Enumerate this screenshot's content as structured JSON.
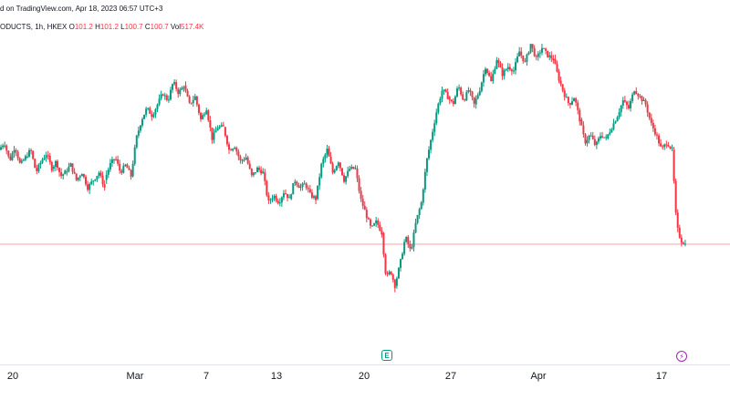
{
  "header": {
    "caption": "d on TradingView.com, Apr 18, 2023 06:57 UTC+3",
    "symbol": "ODUCTS, 1h, HKEX",
    "open_label": "O",
    "open": "101.2",
    "high_label": "H",
    "high": "101.2",
    "low_label": "L",
    "low": "100.7",
    "close_label": "C",
    "close": "100.7",
    "volume_label": "Vol",
    "volume": "517.4K"
  },
  "markers": {
    "earnings": "E",
    "dividend": "⚡"
  },
  "colors": {
    "up": "#089981",
    "down": "#f23645",
    "price_line": "#f7a3a9",
    "text": "#131722"
  },
  "chart_data": {
    "type": "candlestick",
    "interval": "1h",
    "x_tick_labels": [
      "20",
      "Mar",
      "7",
      "13",
      "20",
      "27",
      "Apr",
      "17"
    ],
    "ylim": [
      98.0,
      106.2
    ],
    "last_price": 100.7,
    "segments": [
      {
        "days": 2,
        "points": [
          103.2,
          103.4,
          102.9,
          103.3,
          102.8,
          103.0
        ]
      },
      {
        "days": 2,
        "points": [
          103.0,
          103.2,
          102.6,
          102.9,
          103.1,
          102.7
        ]
      },
      {
        "days": 1,
        "points": [
          102.7,
          102.9,
          102.5,
          102.6
        ]
      },
      {
        "days": 3,
        "points": [
          102.6,
          102.8,
          102.4,
          102.6,
          102.2,
          102.4,
          102.6,
          102.2
        ]
      },
      {
        "days": 2,
        "points": [
          102.4,
          102.8,
          103.0,
          102.6,
          102.8,
          102.5
        ]
      },
      {
        "days": 2,
        "points": [
          102.5,
          103.5,
          104.0,
          104.3,
          104.1,
          104.4
        ]
      },
      {
        "days": 2,
        "points": [
          104.4,
          104.7,
          104.5,
          105.0,
          104.7,
          104.9
        ]
      },
      {
        "days": 3,
        "points": [
          104.9,
          104.4,
          104.6,
          104.0,
          104.3,
          103.5,
          103.8,
          103.8
        ]
      },
      {
        "days": 3,
        "points": [
          103.8,
          103.2,
          103.3,
          102.9,
          103.0,
          102.5,
          102.7,
          102.6
        ]
      },
      {
        "days": 2,
        "points": [
          102.6,
          101.8,
          102.0,
          101.8,
          102.1,
          101.9
        ]
      },
      {
        "days": 2,
        "points": [
          101.9,
          102.4,
          102.2,
          102.3,
          102.0,
          101.9
        ]
      },
      {
        "days": 3,
        "points": [
          101.9,
          102.8,
          103.2,
          102.6,
          102.9,
          102.4,
          102.7,
          102.7
        ]
      },
      {
        "days": 2,
        "points": [
          102.7,
          101.9,
          101.5,
          101.1,
          101.3,
          101.0
        ]
      },
      {
        "days": 1,
        "points": [
          101.0,
          99.8,
          100.0,
          99.6
        ]
      },
      {
        "days": 2,
        "points": [
          99.6,
          100.2,
          100.9,
          100.5,
          101.3,
          101.8
        ]
      },
      {
        "days": 2,
        "points": [
          101.8,
          102.9,
          103.6,
          104.3,
          104.8,
          104.6
        ]
      },
      {
        "days": 2,
        "points": [
          104.6,
          104.4,
          104.9,
          104.5,
          104.8,
          104.4
        ]
      },
      {
        "days": 3,
        "points": [
          104.4,
          104.8,
          105.4,
          105.0,
          105.6,
          105.2,
          105.4,
          105.3
        ]
      },
      {
        "days": 3,
        "points": [
          105.3,
          105.8,
          105.5,
          106.0,
          105.6,
          105.9,
          105.7,
          105.6
        ]
      },
      {
        "days": 2,
        "points": [
          105.6,
          105.1,
          104.7,
          104.4,
          104.6,
          104.0
        ]
      },
      {
        "days": 2,
        "points": [
          104.0,
          103.4,
          103.6,
          103.3,
          103.6,
          103.5
        ]
      },
      {
        "days": 3,
        "points": [
          103.5,
          103.8,
          104.1,
          104.5,
          104.3,
          104.8,
          104.6,
          104.4
        ]
      },
      {
        "days": 2,
        "points": [
          104.4,
          103.9,
          103.6,
          103.2,
          103.4,
          103.2
        ]
      },
      {
        "days": 1,
        "points": [
          103.2,
          101.2,
          100.8,
          100.7
        ]
      }
    ]
  }
}
